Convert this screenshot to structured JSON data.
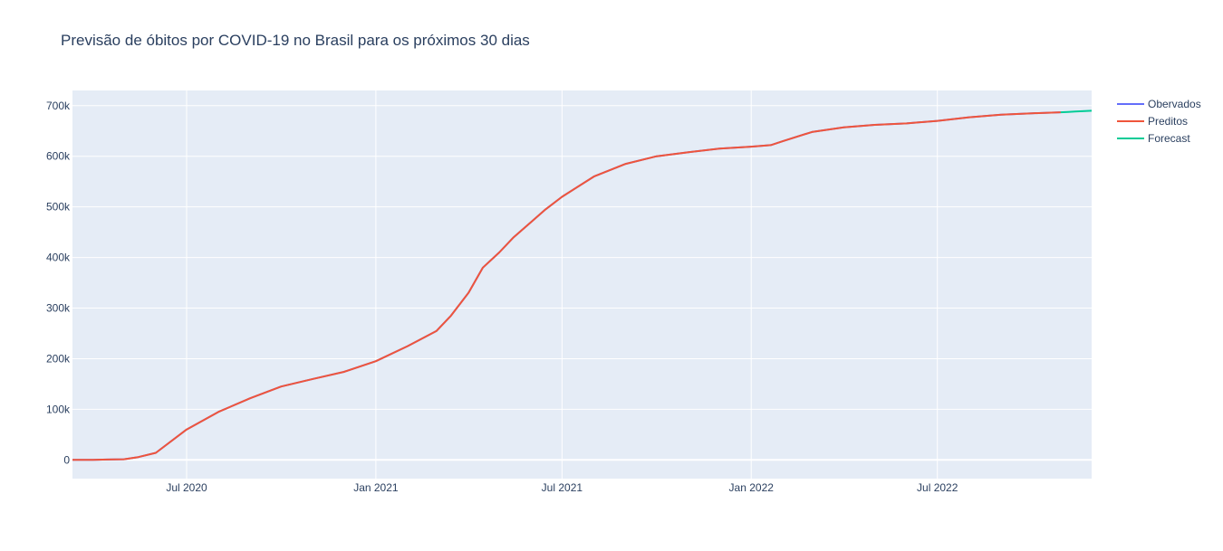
{
  "chart_data": {
    "type": "line",
    "title": "Previsão de óbitos por COVID-19 no Brasil para os próximos 30 dias",
    "xlabel": "",
    "ylabel": "",
    "x_range": [
      "2020-03-12",
      "2022-11-28"
    ],
    "ylim": [
      -37000,
      730000
    ],
    "y_ticks": [
      0,
      100000,
      200000,
      300000,
      400000,
      500000,
      600000,
      700000
    ],
    "y_tick_labels": [
      "0",
      "100k",
      "200k",
      "300k",
      "400k",
      "500k",
      "600k",
      "700k"
    ],
    "x_ticks": [
      "2020-07-01",
      "2021-01-01",
      "2021-07-01",
      "2022-01-01",
      "2022-07-01"
    ],
    "x_tick_labels": [
      "Jul 2020",
      "Jan 2021",
      "Jul 2021",
      "Jan 2022",
      "Jul 2022"
    ],
    "grid": true,
    "legend_position": "top-right",
    "series": [
      {
        "name": "Obervados",
        "color": "#636efa",
        "x": [
          "2020-03-12",
          "2020-04-01",
          "2020-04-15",
          "2020-05-01",
          "2020-05-15",
          "2020-06-01",
          "2020-07-01",
          "2020-08-01",
          "2020-09-01",
          "2020-10-01",
          "2020-11-01",
          "2020-12-01",
          "2021-01-01",
          "2021-02-01",
          "2021-03-01",
          "2021-03-15",
          "2021-04-01",
          "2021-04-15",
          "2021-05-01",
          "2021-05-15",
          "2021-06-01",
          "2021-06-15",
          "2021-07-01",
          "2021-08-01",
          "2021-09-01",
          "2021-10-01",
          "2021-11-01",
          "2021-12-01",
          "2022-01-01",
          "2022-01-20",
          "2022-02-01",
          "2022-03-01",
          "2022-04-01",
          "2022-05-01",
          "2022-06-01",
          "2022-07-01",
          "2022-08-01",
          "2022-09-01",
          "2022-10-01",
          "2022-10-29"
        ],
        "y": [
          0,
          250,
          700,
          1200,
          5500,
          14000,
          60000,
          95000,
          122000,
          145000,
          160000,
          174000,
          195000,
          225000,
          255000,
          285000,
          330000,
          380000,
          410000,
          440000,
          470000,
          495000,
          520000,
          560000,
          585000,
          600000,
          608000,
          615000,
          619000,
          622000,
          630000,
          648000,
          657000,
          662000,
          665000,
          670000,
          677000,
          682000,
          685000,
          687000
        ]
      },
      {
        "name": "Preditos",
        "color": "#ef553b",
        "x": [
          "2020-03-12",
          "2020-04-01",
          "2020-04-15",
          "2020-05-01",
          "2020-05-15",
          "2020-06-01",
          "2020-07-01",
          "2020-08-01",
          "2020-09-01",
          "2020-10-01",
          "2020-11-01",
          "2020-12-01",
          "2021-01-01",
          "2021-02-01",
          "2021-03-01",
          "2021-03-15",
          "2021-04-01",
          "2021-04-15",
          "2021-05-01",
          "2021-05-15",
          "2021-06-01",
          "2021-06-15",
          "2021-07-01",
          "2021-08-01",
          "2021-09-01",
          "2021-10-01",
          "2021-11-01",
          "2021-12-01",
          "2022-01-01",
          "2022-01-20",
          "2022-02-01",
          "2022-03-01",
          "2022-04-01",
          "2022-05-01",
          "2022-06-01",
          "2022-07-01",
          "2022-08-01",
          "2022-09-01",
          "2022-10-01",
          "2022-10-29"
        ],
        "y": [
          0,
          250,
          700,
          1200,
          5500,
          14000,
          60000,
          95000,
          122000,
          145000,
          160000,
          174000,
          195000,
          225000,
          255000,
          285000,
          330000,
          380000,
          410000,
          440000,
          470000,
          495000,
          520000,
          560000,
          585000,
          600000,
          608000,
          615000,
          619000,
          622000,
          630000,
          648000,
          657000,
          662000,
          665000,
          670000,
          677000,
          682000,
          685000,
          687000
        ]
      },
      {
        "name": "Forecast",
        "color": "#00cc96",
        "x": [
          "2022-10-29",
          "2022-11-05",
          "2022-11-12",
          "2022-11-19",
          "2022-11-28"
        ],
        "y": [
          687000,
          687700,
          688400,
          689100,
          690000
        ]
      }
    ]
  }
}
